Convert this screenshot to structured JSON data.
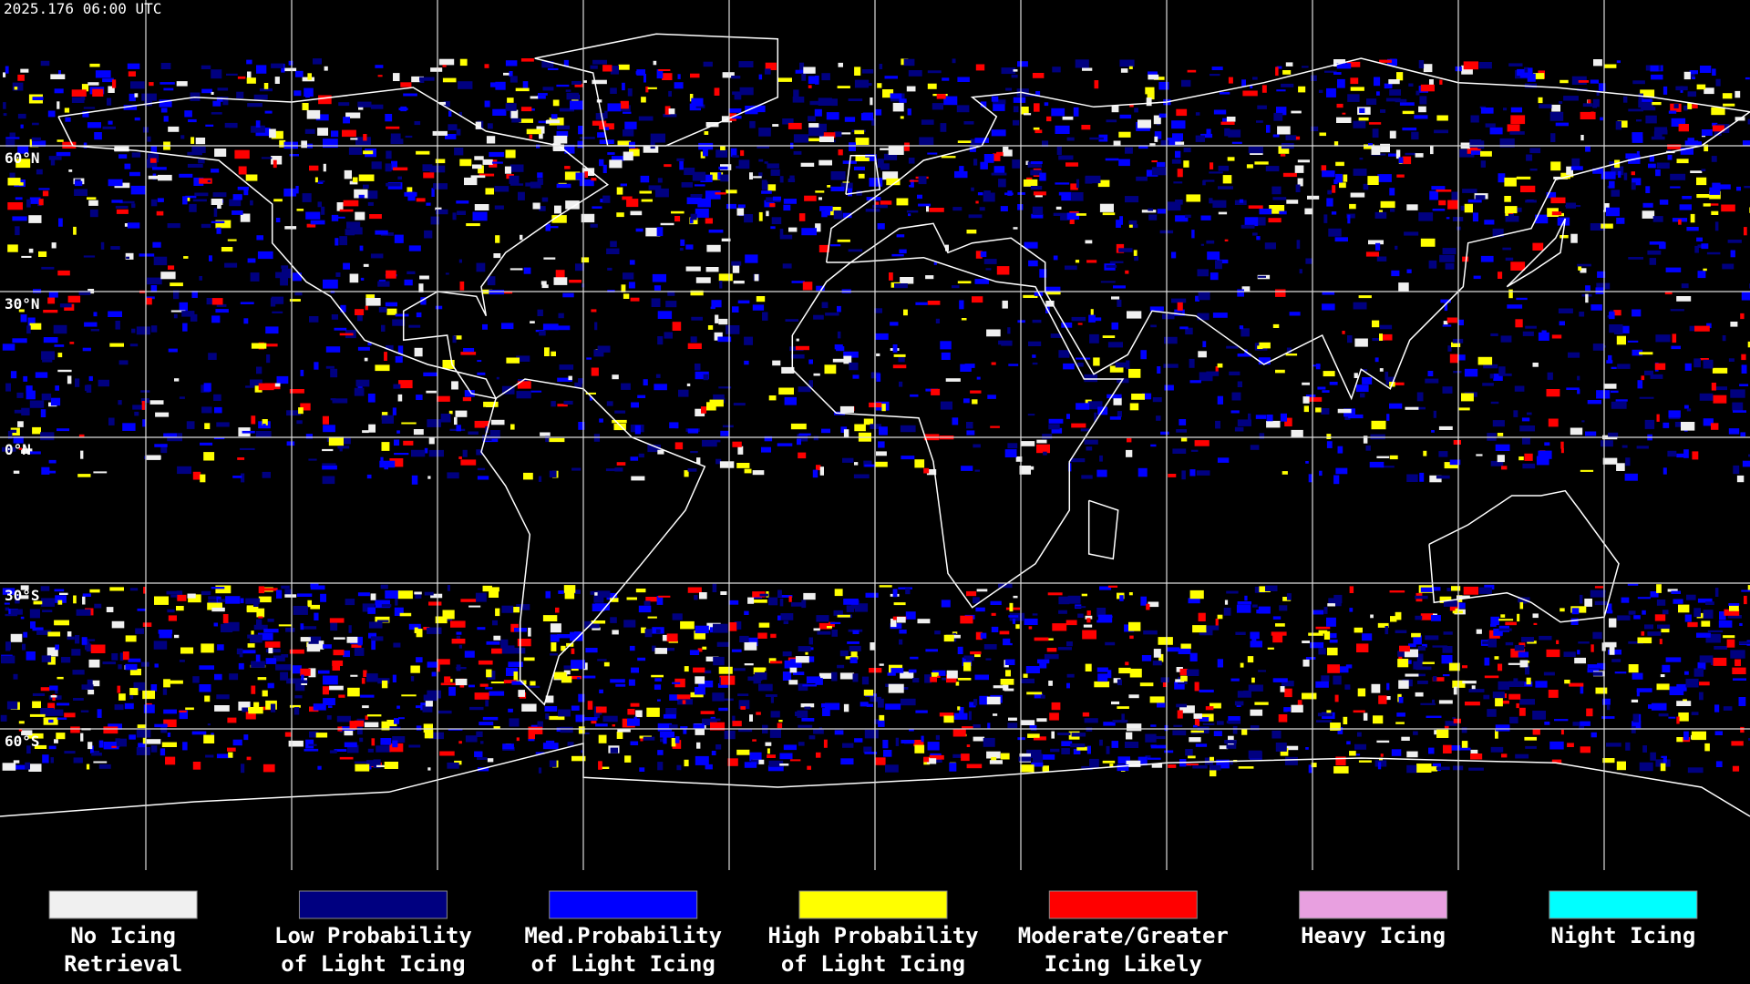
{
  "header": {
    "timestamp": "2025.176 06:00 UTC"
  },
  "latitude_labels": [
    "60°N",
    "30°N",
    "0°N",
    "30°S",
    "60°S"
  ],
  "legend": {
    "items": [
      {
        "lines": [
          "No Icing",
          "Retrieval"
        ],
        "color": "#f0f0f0"
      },
      {
        "lines": [
          "Low Probability",
          "of Light Icing"
        ],
        "color": "#000080"
      },
      {
        "lines": [
          "Med.Probability",
          "of Light Icing"
        ],
        "color": "#0000ff"
      },
      {
        "lines": [
          "High Probability",
          "of Light Icing"
        ],
        "color": "#ffff00"
      },
      {
        "lines": [
          "Moderate/Greater",
          "Icing Likely"
        ],
        "color": "#ff0000"
      },
      {
        "lines": [
          "Heavy Icing"
        ],
        "color": "#e8a0e0"
      },
      {
        "lines": [
          "Night Icing"
        ],
        "color": "#00ffff"
      }
    ]
  }
}
